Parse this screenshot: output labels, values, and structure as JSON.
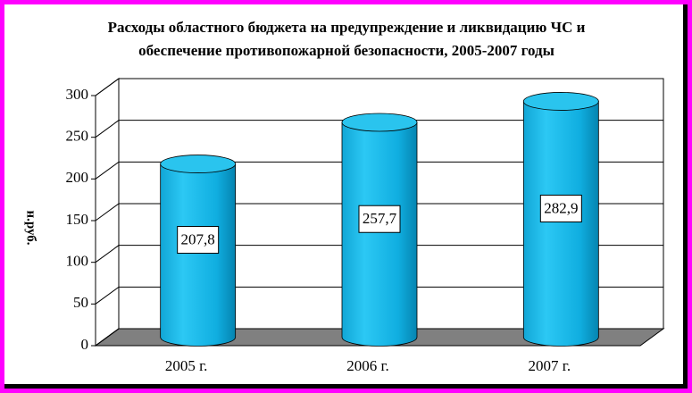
{
  "chart_data": {
    "type": "bar",
    "style": "3d-cylinder",
    "title": "Расходы областного бюджета на предупреждение и ликвидацию ЧС и обеспечение противопожарной безопасности, 2005-2007 годы",
    "y_label": "н.руб.",
    "categories": [
      "2005 г.",
      "2006 г.",
      "2007 г."
    ],
    "values": [
      207.8,
      257.7,
      282.9
    ],
    "value_labels": [
      "207,8",
      "257,7",
      "282,9"
    ],
    "color": "#1ab8e8",
    "ylim": [
      0,
      300
    ],
    "yticks": [
      0,
      50,
      100,
      150,
      200,
      250,
      300
    ],
    "grid": true
  }
}
